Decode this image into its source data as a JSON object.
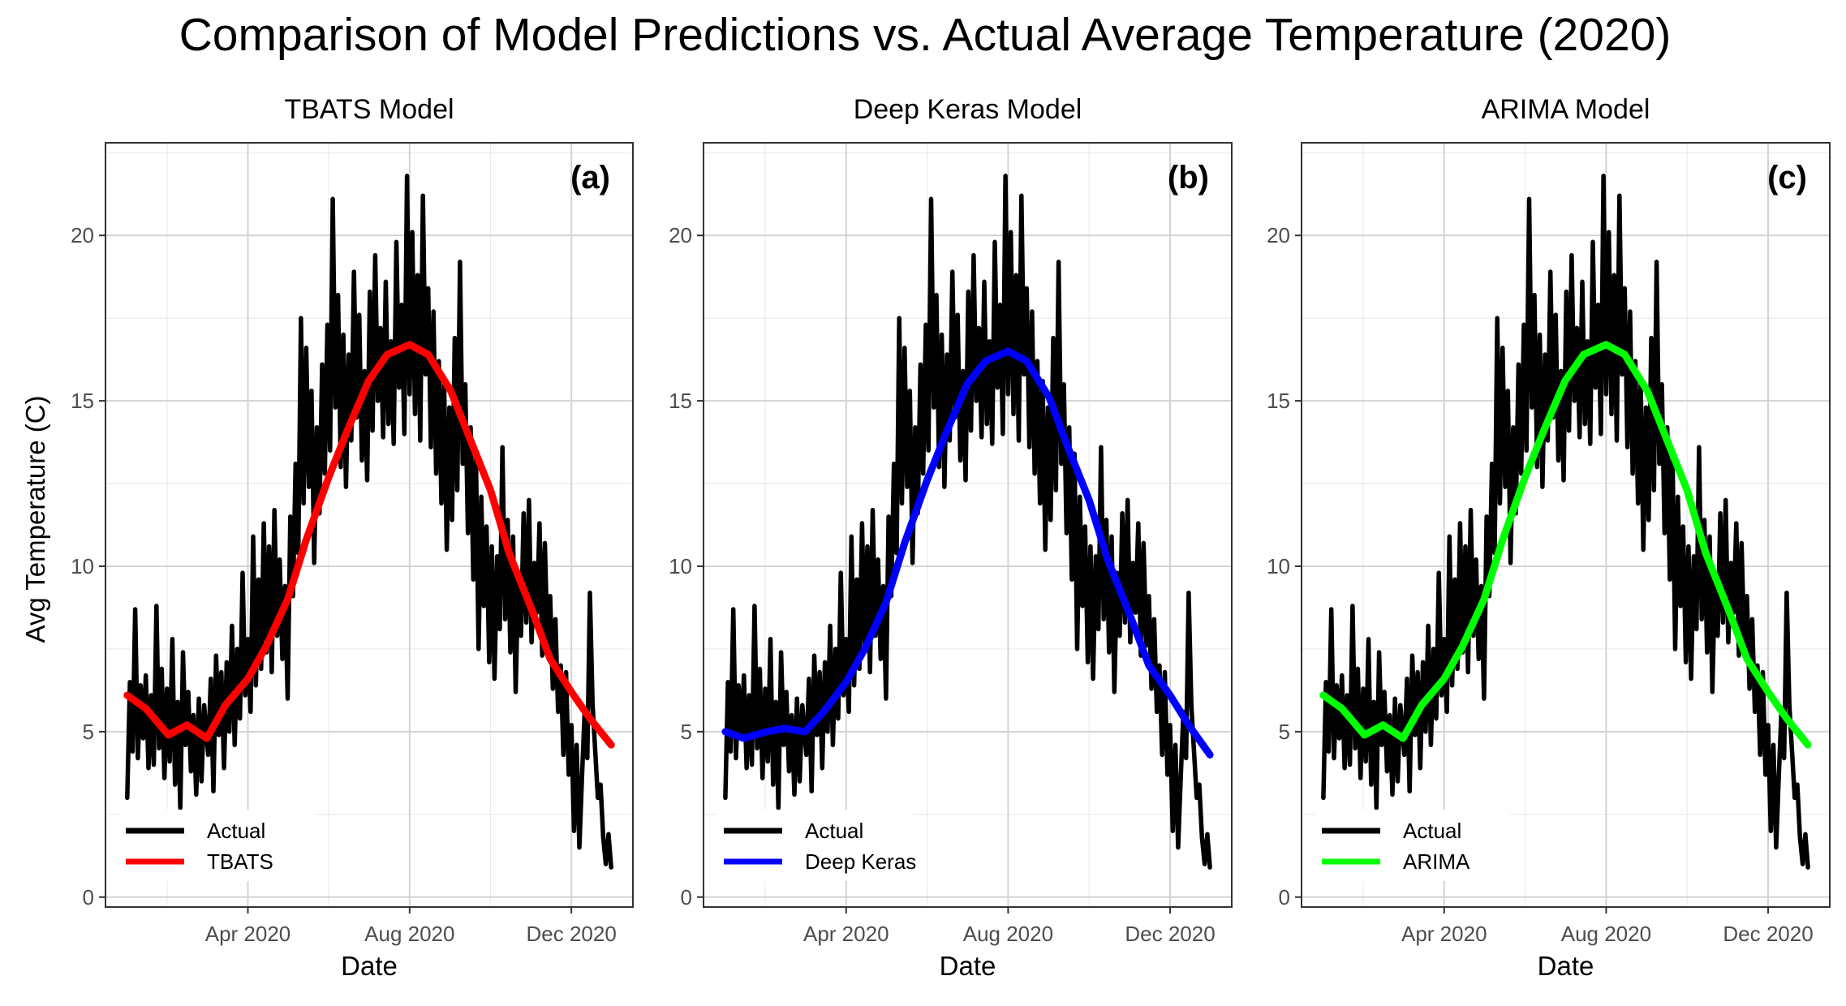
{
  "figure": {
    "title": "Comparison of Model Predictions vs. Actual Average Temperature (2020)",
    "ylabel": "Avg Temperature (C)"
  },
  "chart_data": [
    {
      "type": "line",
      "title": "TBATS Model",
      "panel_label": "(a)",
      "xlabel": "Date",
      "ylabel": "Avg Temperature (C)",
      "x_range": [
        "2020-01-01",
        "2020-12-31"
      ],
      "ylim": [
        -0.3,
        22.8
      ],
      "x_ticks": [
        {
          "date": "2020-04-01",
          "label": "Apr 2020"
        },
        {
          "date": "2020-08-01",
          "label": "Aug 2020"
        },
        {
          "date": "2020-12-01",
          "label": "Dec 2020"
        }
      ],
      "y_ticks": [
        0,
        5,
        10,
        15,
        20
      ],
      "grid": true,
      "legend_position": "bottom-left",
      "series": [
        {
          "name": "Actual",
          "color": "#000000",
          "key": "actual"
        },
        {
          "name": "TBATS",
          "color": "#ff0000",
          "values": [
            [
              "2020-01-01",
              6.1
            ],
            [
              "2020-01-15",
              5.7
            ],
            [
              "2020-02-01",
              4.9
            ],
            [
              "2020-02-15",
              5.2
            ],
            [
              "2020-03-01",
              4.8
            ],
            [
              "2020-03-15",
              5.8
            ],
            [
              "2020-04-01",
              6.6
            ],
            [
              "2020-04-15",
              7.6
            ],
            [
              "2020-05-01",
              9.0
            ],
            [
              "2020-05-15",
              10.8
            ],
            [
              "2020-06-01",
              12.7
            ],
            [
              "2020-06-15",
              14.1
            ],
            [
              "2020-07-01",
              15.6
            ],
            [
              "2020-07-15",
              16.4
            ],
            [
              "2020-08-01",
              16.7
            ],
            [
              "2020-08-15",
              16.4
            ],
            [
              "2020-09-01",
              15.3
            ],
            [
              "2020-09-15",
              13.9
            ],
            [
              "2020-10-01",
              12.3
            ],
            [
              "2020-10-15",
              10.4
            ],
            [
              "2020-11-01",
              8.7
            ],
            [
              "2020-11-15",
              7.2
            ],
            [
              "2020-12-01",
              6.2
            ],
            [
              "2020-12-15",
              5.4
            ],
            [
              "2020-12-31",
              4.6
            ]
          ]
        }
      ]
    },
    {
      "type": "line",
      "title": "Deep Keras Model",
      "panel_label": "(b)",
      "xlabel": "Date",
      "x_range": [
        "2020-01-01",
        "2020-12-31"
      ],
      "ylim": [
        -0.3,
        22.8
      ],
      "x_ticks": [
        {
          "date": "2020-04-01",
          "label": "Apr 2020"
        },
        {
          "date": "2020-08-01",
          "label": "Aug 2020"
        },
        {
          "date": "2020-12-01",
          "label": "Dec 2020"
        }
      ],
      "y_ticks": [
        0,
        5,
        10,
        15,
        20
      ],
      "grid": true,
      "legend_position": "bottom-left",
      "series": [
        {
          "name": "Actual",
          "color": "#000000",
          "key": "actual"
        },
        {
          "name": "Deep Keras",
          "color": "#0000ff",
          "values": [
            [
              "2020-01-01",
              5.0
            ],
            [
              "2020-01-15",
              4.8
            ],
            [
              "2020-02-01",
              5.0
            ],
            [
              "2020-02-15",
              5.1
            ],
            [
              "2020-03-01",
              5.0
            ],
            [
              "2020-03-15",
              5.6
            ],
            [
              "2020-04-01",
              6.5
            ],
            [
              "2020-04-15",
              7.5
            ],
            [
              "2020-05-01",
              8.9
            ],
            [
              "2020-05-15",
              10.7
            ],
            [
              "2020-06-01",
              12.6
            ],
            [
              "2020-06-15",
              14.0
            ],
            [
              "2020-07-01",
              15.5
            ],
            [
              "2020-07-15",
              16.2
            ],
            [
              "2020-08-01",
              16.5
            ],
            [
              "2020-08-15",
              16.2
            ],
            [
              "2020-09-01",
              15.1
            ],
            [
              "2020-09-15",
              13.6
            ],
            [
              "2020-10-01",
              12.0
            ],
            [
              "2020-10-15",
              10.2
            ],
            [
              "2020-11-01",
              8.5
            ],
            [
              "2020-11-15",
              7.0
            ],
            [
              "2020-12-01",
              6.1
            ],
            [
              "2020-12-15",
              5.2
            ],
            [
              "2020-12-31",
              4.3
            ]
          ]
        }
      ]
    },
    {
      "type": "line",
      "title": "ARIMA Model",
      "panel_label": "(c)",
      "xlabel": "Date",
      "x_range": [
        "2020-01-01",
        "2020-12-31"
      ],
      "ylim": [
        -0.3,
        22.8
      ],
      "x_ticks": [
        {
          "date": "2020-04-01",
          "label": "Apr 2020"
        },
        {
          "date": "2020-08-01",
          "label": "Aug 2020"
        },
        {
          "date": "2020-12-01",
          "label": "Dec 2020"
        }
      ],
      "y_ticks": [
        0,
        5,
        10,
        15,
        20
      ],
      "grid": true,
      "legend_position": "bottom-left",
      "series": [
        {
          "name": "Actual",
          "color": "#000000",
          "key": "actual"
        },
        {
          "name": "ARIMA",
          "color": "#00ff00",
          "values": [
            [
              "2020-01-01",
              6.1
            ],
            [
              "2020-01-15",
              5.7
            ],
            [
              "2020-02-01",
              4.9
            ],
            [
              "2020-02-15",
              5.2
            ],
            [
              "2020-03-01",
              4.8
            ],
            [
              "2020-03-15",
              5.8
            ],
            [
              "2020-04-01",
              6.6
            ],
            [
              "2020-04-15",
              7.6
            ],
            [
              "2020-05-01",
              9.0
            ],
            [
              "2020-05-15",
              10.8
            ],
            [
              "2020-06-01",
              12.7
            ],
            [
              "2020-06-15",
              14.1
            ],
            [
              "2020-07-01",
              15.6
            ],
            [
              "2020-07-15",
              16.4
            ],
            [
              "2020-08-01",
              16.7
            ],
            [
              "2020-08-15",
              16.4
            ],
            [
              "2020-09-01",
              15.3
            ],
            [
              "2020-09-15",
              13.9
            ],
            [
              "2020-10-01",
              12.3
            ],
            [
              "2020-10-15",
              10.4
            ],
            [
              "2020-11-01",
              8.7
            ],
            [
              "2020-11-15",
              7.2
            ],
            [
              "2020-12-01",
              6.2
            ],
            [
              "2020-12-15",
              5.4
            ],
            [
              "2020-12-31",
              4.6
            ]
          ]
        }
      ]
    }
  ],
  "actual_series": {
    "name": "Actual",
    "color": "#000000",
    "values": [
      [
        "2020-01-01",
        3.0
      ],
      [
        "2020-01-03",
        6.5
      ],
      [
        "2020-01-05",
        4.4
      ],
      [
        "2020-01-07",
        8.7
      ],
      [
        "2020-01-09",
        4.2
      ],
      [
        "2020-01-11",
        6.4
      ],
      [
        "2020-01-13",
        4.8
      ],
      [
        "2020-01-15",
        6.7
      ],
      [
        "2020-01-17",
        3.9
      ],
      [
        "2020-01-19",
        6.1
      ],
      [
        "2020-01-21",
        4.0
      ],
      [
        "2020-01-23",
        8.8
      ],
      [
        "2020-01-25",
        4.5
      ],
      [
        "2020-01-27",
        6.9
      ],
      [
        "2020-01-29",
        3.6
      ],
      [
        "2020-01-31",
        6.3
      ],
      [
        "2020-02-02",
        4.1
      ],
      [
        "2020-02-04",
        7.8
      ],
      [
        "2020-02-06",
        3.4
      ],
      [
        "2020-02-08",
        5.9
      ],
      [
        "2020-02-10",
        2.7
      ],
      [
        "2020-02-12",
        7.4
      ],
      [
        "2020-02-14",
        4.6
      ],
      [
        "2020-02-16",
        6.2
      ],
      [
        "2020-02-18",
        3.8
      ],
      [
        "2020-02-20",
        5.5
      ],
      [
        "2020-02-22",
        3.1
      ],
      [
        "2020-02-24",
        6.0
      ],
      [
        "2020-02-26",
        3.5
      ],
      [
        "2020-02-28",
        5.8
      ],
      [
        "2020-03-02",
        4.3
      ],
      [
        "2020-03-04",
        6.6
      ],
      [
        "2020-03-06",
        3.2
      ],
      [
        "2020-03-08",
        7.3
      ],
      [
        "2020-03-10",
        4.9
      ],
      [
        "2020-03-12",
        6.8
      ],
      [
        "2020-03-14",
        3.9
      ],
      [
        "2020-03-16",
        7.1
      ],
      [
        "2020-03-18",
        5.0
      ],
      [
        "2020-03-20",
        8.2
      ],
      [
        "2020-03-22",
        4.6
      ],
      [
        "2020-03-24",
        7.5
      ],
      [
        "2020-03-26",
        5.4
      ],
      [
        "2020-03-28",
        9.8
      ],
      [
        "2020-03-30",
        6.1
      ],
      [
        "2020-04-01",
        7.8
      ],
      [
        "2020-04-03",
        5.6
      ],
      [
        "2020-04-05",
        10.9
      ],
      [
        "2020-04-07",
        6.4
      ],
      [
        "2020-04-09",
        9.6
      ],
      [
        "2020-04-11",
        6.9
      ],
      [
        "2020-04-13",
        11.3
      ],
      [
        "2020-04-15",
        7.4
      ],
      [
        "2020-04-17",
        10.6
      ],
      [
        "2020-04-19",
        6.8
      ],
      [
        "2020-04-21",
        11.7
      ],
      [
        "2020-04-23",
        7.9
      ],
      [
        "2020-04-25",
        10.2
      ],
      [
        "2020-04-27",
        7.2
      ],
      [
        "2020-04-29",
        9.4
      ],
      [
        "2020-05-01",
        6.0
      ],
      [
        "2020-05-03",
        11.5
      ],
      [
        "2020-05-05",
        9.1
      ],
      [
        "2020-05-07",
        13.1
      ],
      [
        "2020-05-09",
        10.4
      ],
      [
        "2020-05-11",
        17.5
      ],
      [
        "2020-05-13",
        11.9
      ],
      [
        "2020-05-15",
        16.6
      ],
      [
        "2020-05-17",
        12.4
      ],
      [
        "2020-05-19",
        15.3
      ],
      [
        "2020-05-21",
        10.1
      ],
      [
        "2020-05-23",
        14.2
      ],
      [
        "2020-05-25",
        11.6
      ],
      [
        "2020-05-27",
        16.1
      ],
      [
        "2020-05-29",
        12.8
      ],
      [
        "2020-05-31",
        17.3
      ],
      [
        "2020-06-02",
        13.5
      ],
      [
        "2020-06-04",
        21.1
      ],
      [
        "2020-06-06",
        14.8
      ],
      [
        "2020-06-08",
        18.2
      ],
      [
        "2020-06-10",
        13.0
      ],
      [
        "2020-06-12",
        17.0
      ],
      [
        "2020-06-14",
        12.4
      ],
      [
        "2020-06-16",
        16.4
      ],
      [
        "2020-06-18",
        13.8
      ],
      [
        "2020-06-20",
        18.9
      ],
      [
        "2020-06-22",
        14.5
      ],
      [
        "2020-06-24",
        17.6
      ],
      [
        "2020-06-26",
        13.2
      ],
      [
        "2020-06-28",
        15.9
      ],
      [
        "2020-06-30",
        12.6
      ],
      [
        "2020-07-02",
        18.3
      ],
      [
        "2020-07-04",
        14.1
      ],
      [
        "2020-07-06",
        19.4
      ],
      [
        "2020-07-08",
        15.0
      ],
      [
        "2020-07-10",
        17.2
      ],
      [
        "2020-07-12",
        13.9
      ],
      [
        "2020-07-14",
        18.6
      ],
      [
        "2020-07-16",
        14.3
      ],
      [
        "2020-07-18",
        16.8
      ],
      [
        "2020-07-20",
        13.7
      ],
      [
        "2020-07-22",
        19.8
      ],
      [
        "2020-07-24",
        15.4
      ],
      [
        "2020-07-26",
        17.9
      ],
      [
        "2020-07-28",
        14.0
      ],
      [
        "2020-07-30",
        21.8
      ],
      [
        "2020-08-01",
        15.2
      ],
      [
        "2020-08-03",
        20.1
      ],
      [
        "2020-08-05",
        14.6
      ],
      [
        "2020-08-07",
        18.8
      ],
      [
        "2020-08-09",
        13.8
      ],
      [
        "2020-08-11",
        21.2
      ],
      [
        "2020-08-13",
        15.8
      ],
      [
        "2020-08-15",
        18.4
      ],
      [
        "2020-08-17",
        13.6
      ],
      [
        "2020-08-19",
        17.7
      ],
      [
        "2020-08-21",
        12.8
      ],
      [
        "2020-08-23",
        16.2
      ],
      [
        "2020-08-25",
        11.9
      ],
      [
        "2020-08-27",
        15.6
      ],
      [
        "2020-08-29",
        10.5
      ],
      [
        "2020-08-31",
        14.8
      ],
      [
        "2020-09-02",
        11.4
      ],
      [
        "2020-09-04",
        16.9
      ],
      [
        "2020-09-06",
        12.3
      ],
      [
        "2020-09-08",
        19.2
      ],
      [
        "2020-09-10",
        13.1
      ],
      [
        "2020-09-12",
        15.5
      ],
      [
        "2020-09-14",
        11.0
      ],
      [
        "2020-09-16",
        14.2
      ],
      [
        "2020-09-18",
        9.6
      ],
      [
        "2020-09-20",
        13.4
      ],
      [
        "2020-09-22",
        7.5
      ],
      [
        "2020-09-24",
        12.1
      ],
      [
        "2020-09-26",
        8.8
      ],
      [
        "2020-09-28",
        11.2
      ],
      [
        "2020-09-30",
        7.1
      ],
      [
        "2020-10-02",
        10.6
      ],
      [
        "2020-10-04",
        6.6
      ],
      [
        "2020-10-06",
        10.3
      ],
      [
        "2020-10-08",
        8.1
      ],
      [
        "2020-10-10",
        13.6
      ],
      [
        "2020-10-12",
        8.4
      ],
      [
        "2020-10-14",
        11.4
      ],
      [
        "2020-10-16",
        7.4
      ],
      [
        "2020-10-18",
        10.9
      ],
      [
        "2020-10-20",
        6.2
      ],
      [
        "2020-10-22",
        9.8
      ],
      [
        "2020-10-24",
        7.9
      ],
      [
        "2020-10-26",
        11.6
      ],
      [
        "2020-10-28",
        8.3
      ],
      [
        "2020-10-30",
        12.0
      ],
      [
        "2020-11-01",
        7.7
      ],
      [
        "2020-11-03",
        10.1
      ],
      [
        "2020-11-05",
        8.6
      ],
      [
        "2020-11-07",
        11.3
      ],
      [
        "2020-11-09",
        7.3
      ],
      [
        "2020-11-11",
        10.7
      ],
      [
        "2020-11-13",
        7.6
      ],
      [
        "2020-11-15",
        9.1
      ],
      [
        "2020-11-17",
        6.3
      ],
      [
        "2020-11-19",
        8.4
      ],
      [
        "2020-11-21",
        5.6
      ],
      [
        "2020-11-23",
        7.0
      ],
      [
        "2020-11-25",
        4.3
      ],
      [
        "2020-11-27",
        6.8
      ],
      [
        "2020-11-29",
        3.7
      ],
      [
        "2020-12-01",
        5.2
      ],
      [
        "2020-12-03",
        2.0
      ],
      [
        "2020-12-05",
        4.6
      ],
      [
        "2020-12-07",
        1.5
      ],
      [
        "2020-12-09",
        3.6
      ],
      [
        "2020-12-11",
        5.6
      ],
      [
        "2020-12-13",
        4.2
      ],
      [
        "2020-12-15",
        9.2
      ],
      [
        "2020-12-17",
        5.8
      ],
      [
        "2020-12-19",
        4.4
      ],
      [
        "2020-12-21",
        3.0
      ],
      [
        "2020-12-23",
        3.4
      ],
      [
        "2020-12-25",
        1.8
      ],
      [
        "2020-12-27",
        1.0
      ],
      [
        "2020-12-29",
        1.9
      ],
      [
        "2020-12-31",
        0.9
      ]
    ]
  }
}
